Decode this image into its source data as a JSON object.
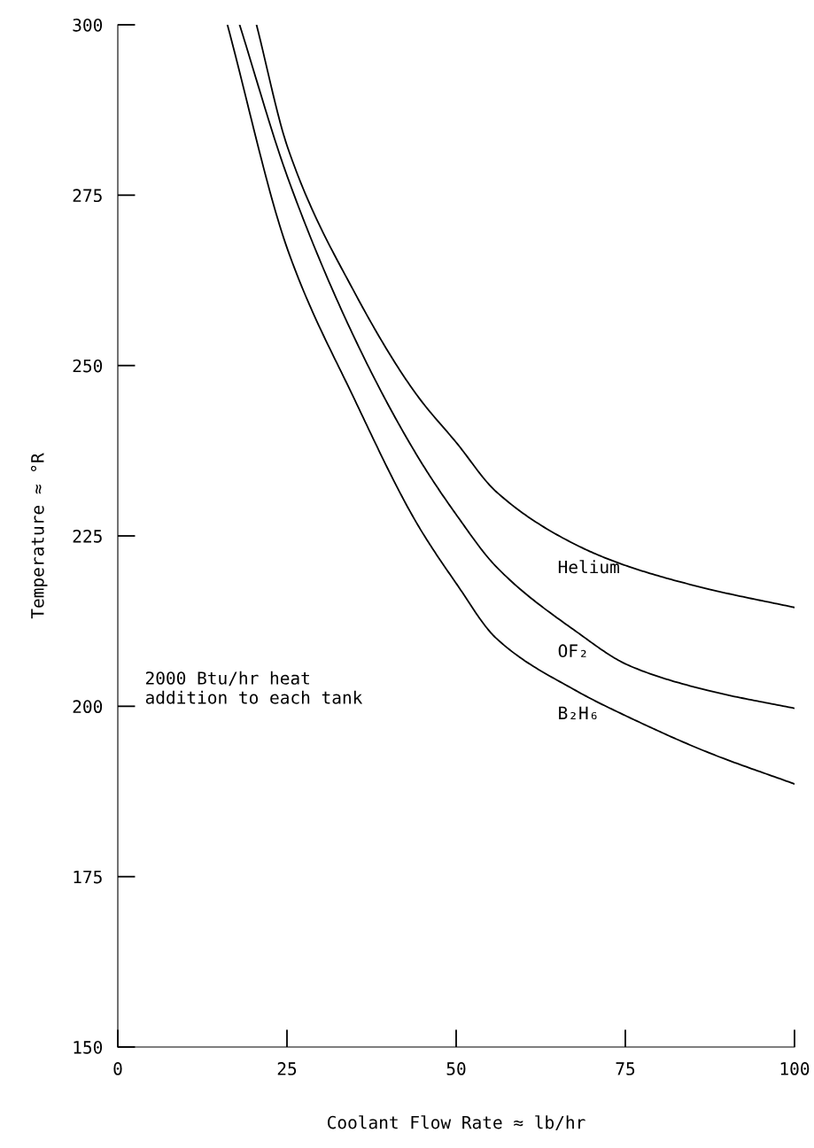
{
  "chart_data": {
    "type": "line",
    "xlabel": "Coolant Flow Rate ≈ lb/hr",
    "ylabel": "Temperature ≈ °R",
    "xlim": [
      0,
      100
    ],
    "ylim": [
      150,
      300
    ],
    "xticks": [
      0,
      25,
      50,
      75,
      100
    ],
    "yticks": [
      150,
      175,
      200,
      225,
      250,
      275,
      300
    ],
    "grid": false,
    "legend": false,
    "marker": "none",
    "line_style": "solid",
    "annotations": [
      {
        "text": "2000 Btu/hr heat\naddition to each tank"
      }
    ],
    "series": [
      {
        "name": "Helium",
        "color": "#000000",
        "x": [
          20.5,
          25.1,
          35,
          44.1,
          50.1,
          55.9,
          67.7,
          75.5,
          87.3,
          100
        ],
        "values": [
          300,
          282,
          260.7,
          245.8,
          238.6,
          231.5,
          223.7,
          220.5,
          217.2,
          214.5
        ]
      },
      {
        "name": "OF₂",
        "color": "#000000",
        "x": [
          18,
          25.1,
          35,
          44.1,
          50.1,
          55.9,
          67.7,
          75.5,
          87.3,
          100
        ],
        "values": [
          300,
          277.6,
          254,
          237,
          228,
          220.5,
          211,
          206,
          202.3,
          199.7
        ]
      },
      {
        "name": "B₂H₆",
        "color": "#000000",
        "x": [
          16.2,
          25.1,
          35,
          44.1,
          50.1,
          55.9,
          67.7,
          75.5,
          87.3,
          100
        ],
        "values": [
          300,
          267,
          245,
          227,
          217.9,
          210,
          202.3,
          198.4,
          193.2,
          188.6
        ]
      }
    ]
  }
}
